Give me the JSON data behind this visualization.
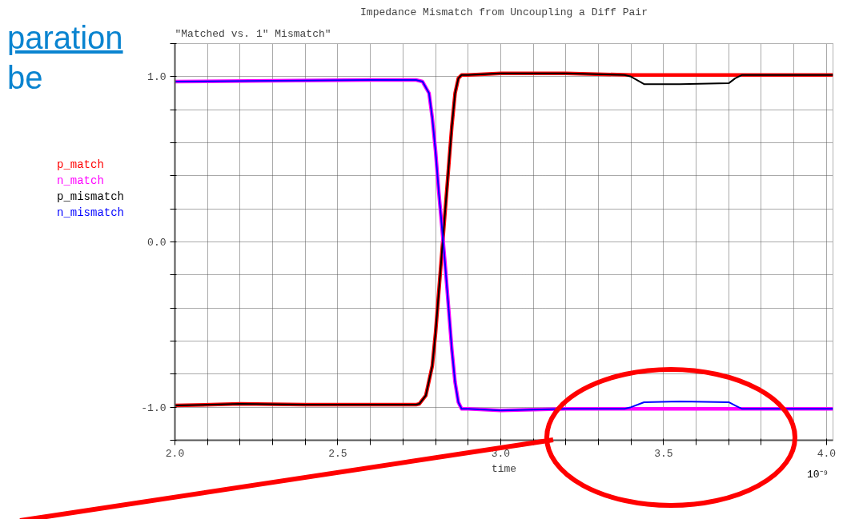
{
  "chart_data": {
    "type": "line",
    "title": "Impedance Mismatch from Uncoupling a Diff Pair",
    "subtitle": "\"Matched vs. 1\" Mismatch\"",
    "xlabel": "time",
    "annotations": [
      "10⁻⁹",
      "paration",
      "be"
    ],
    "xlim": [
      2.0,
      4.02
    ],
    "ylim": [
      -1.2,
      1.2
    ],
    "xticks": [
      {
        "value": 2.0,
        "label": "2.0"
      },
      {
        "value": 2.1,
        "label": null
      },
      {
        "value": 2.2,
        "label": null
      },
      {
        "value": 2.3,
        "label": null
      },
      {
        "value": 2.4,
        "label": null
      },
      {
        "value": 2.5,
        "label": "2.5"
      },
      {
        "value": 2.6,
        "label": null
      },
      {
        "value": 2.7,
        "label": null
      },
      {
        "value": 2.8,
        "label": null
      },
      {
        "value": 2.9,
        "label": null
      },
      {
        "value": 3.0,
        "label": "3.0"
      },
      {
        "value": 3.1,
        "label": null
      },
      {
        "value": 3.2,
        "label": null
      },
      {
        "value": 3.3,
        "label": null
      },
      {
        "value": 3.4,
        "label": null
      },
      {
        "value": 3.5,
        "label": "3.5"
      },
      {
        "value": 3.6,
        "label": null
      },
      {
        "value": 3.7,
        "label": null
      },
      {
        "value": 3.8,
        "label": null
      },
      {
        "value": 3.9,
        "label": null
      },
      {
        "value": 4.0,
        "label": "4.0"
      }
    ],
    "yticks": [
      {
        "value": -1.2,
        "label": null
      },
      {
        "value": -1.0,
        "label": "-1.0"
      },
      {
        "value": -0.8,
        "label": null
      },
      {
        "value": -0.6,
        "label": null
      },
      {
        "value": -0.4,
        "label": null
      },
      {
        "value": -0.2,
        "label": null
      },
      {
        "value": 0.0,
        "label": "0.0"
      },
      {
        "value": 0.2,
        "label": null
      },
      {
        "value": 0.4,
        "label": null
      },
      {
        "value": 0.6,
        "label": null
      },
      {
        "value": 0.8,
        "label": null
      },
      {
        "value": 1.0,
        "label": "1.0"
      },
      {
        "value": 1.2,
        "label": null
      }
    ],
    "grid": true,
    "line_style": "solid",
    "series": [
      {
        "name": "p_match",
        "color": "#ff0000",
        "x": [
          2.0,
          2.2,
          2.4,
          2.6,
          2.74,
          2.75,
          2.77,
          2.79,
          2.8,
          2.81,
          2.82,
          2.83,
          2.84,
          2.85,
          2.86,
          2.87,
          2.88,
          2.9,
          3.0,
          3.2,
          3.4,
          3.6,
          3.8,
          4.0,
          4.02
        ],
        "values": [
          -0.99,
          -0.98,
          -0.985,
          -0.985,
          -0.985,
          -0.98,
          -0.93,
          -0.75,
          -0.55,
          -0.3,
          -0.05,
          0.2,
          0.45,
          0.7,
          0.9,
          0.99,
          1.01,
          1.01,
          1.02,
          1.02,
          1.01,
          1.01,
          1.01,
          1.01,
          1.01
        ]
      },
      {
        "name": "n_match",
        "color": "#ff00ff",
        "x": [
          2.0,
          2.3,
          2.6,
          2.74,
          2.76,
          2.78,
          2.79,
          2.8,
          2.81,
          2.82,
          2.83,
          2.84,
          2.85,
          2.86,
          2.87,
          2.88,
          2.9,
          3.0,
          3.2,
          3.5,
          3.8,
          4.02
        ],
        "values": [
          0.97,
          0.975,
          0.98,
          0.98,
          0.97,
          0.9,
          0.75,
          0.55,
          0.3,
          0.08,
          -0.15,
          -0.4,
          -0.65,
          -0.85,
          -0.97,
          -1.01,
          -1.01,
          -1.02,
          -1.01,
          -1.01,
          -1.01,
          -1.01
        ]
      },
      {
        "name": "p_mismatch",
        "color": "#000000",
        "x": [
          2.0,
          2.2,
          2.4,
          2.6,
          2.74,
          2.75,
          2.77,
          2.79,
          2.8,
          2.81,
          2.82,
          2.83,
          2.84,
          2.85,
          2.86,
          2.87,
          2.88,
          2.9,
          3.0,
          3.2,
          3.38,
          3.4,
          3.44,
          3.55,
          3.7,
          3.72,
          3.74,
          3.9,
          4.02
        ],
        "values": [
          -0.99,
          -0.98,
          -0.985,
          -0.985,
          -0.985,
          -0.98,
          -0.93,
          -0.75,
          -0.55,
          -0.3,
          -0.05,
          0.2,
          0.45,
          0.7,
          0.9,
          0.99,
          1.01,
          1.01,
          1.02,
          1.02,
          1.01,
          1.0,
          0.955,
          0.955,
          0.96,
          0.99,
          1.01,
          1.01,
          1.01
        ]
      },
      {
        "name": "n_mismatch",
        "color": "#0000ff",
        "x": [
          2.0,
          2.3,
          2.6,
          2.74,
          2.76,
          2.78,
          2.79,
          2.8,
          2.81,
          2.82,
          2.83,
          2.84,
          2.85,
          2.86,
          2.87,
          2.88,
          2.9,
          3.0,
          3.2,
          3.38,
          3.4,
          3.44,
          3.55,
          3.7,
          3.72,
          3.74,
          4.02
        ],
        "values": [
          0.97,
          0.975,
          0.98,
          0.98,
          0.97,
          0.9,
          0.75,
          0.55,
          0.3,
          0.08,
          -0.15,
          -0.4,
          -0.65,
          -0.85,
          -0.97,
          -1.01,
          -1.01,
          -1.02,
          -1.01,
          -1.01,
          -1.0,
          -0.97,
          -0.965,
          -0.97,
          -0.99,
          -1.01,
          -1.01
        ]
      }
    ]
  }
}
